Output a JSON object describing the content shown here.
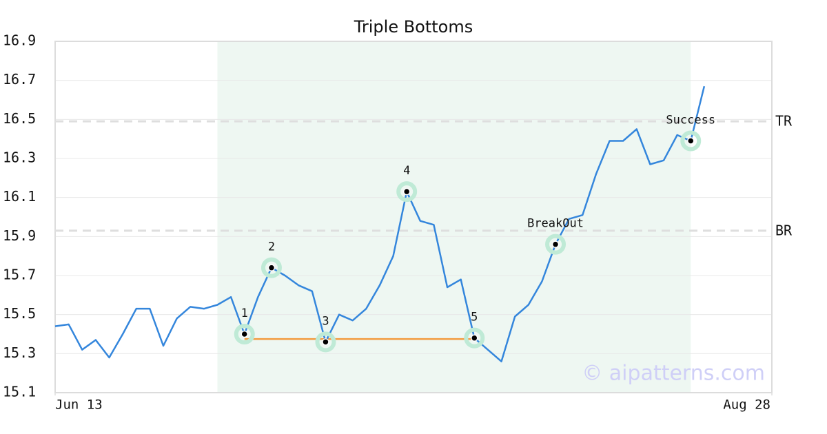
{
  "chart_data": {
    "type": "line",
    "title": "Triple Bottoms",
    "series": [
      {
        "color": "#3486dc",
        "values": [
          15.44,
          15.45,
          15.32,
          15.37,
          15.28,
          15.4,
          15.53,
          15.53,
          15.34,
          15.48,
          15.54,
          15.53,
          15.55,
          15.59,
          15.4,
          15.59,
          15.74,
          15.7,
          15.65,
          15.62,
          15.36,
          15.5,
          15.47,
          15.53,
          15.65,
          15.8,
          16.13,
          15.98,
          15.96,
          15.64,
          15.68,
          15.38,
          15.32,
          15.26,
          15.49,
          15.55,
          15.67,
          15.86,
          15.99,
          16.01,
          16.22,
          16.39,
          16.39,
          16.45,
          16.27,
          16.29,
          16.42,
          16.39,
          16.67
        ]
      }
    ],
    "xlim": [
      0,
      53
    ],
    "xticks": [
      {
        "value": 0,
        "label": "Jun 13"
      },
      {
        "value": 53,
        "label": "Aug 28"
      }
    ],
    "ylim": [
      15.1,
      16.9
    ],
    "yticks": [
      15.1,
      15.3,
      15.5,
      15.7,
      15.9,
      16.1,
      16.3,
      16.5,
      16.7,
      16.9
    ],
    "grid": true,
    "shade": {
      "x": [
        12,
        47
      ],
      "color": "#eef7f2"
    },
    "support": {
      "x": [
        14,
        31
      ],
      "y": 15.375,
      "color": "#f39a3e"
    },
    "hlines": [
      {
        "label": "TR",
        "value": 16.49
      },
      {
        "label": "BR",
        "value": 15.93
      }
    ],
    "markers": [
      {
        "label": "1",
        "x": 14,
        "y": 15.4
      },
      {
        "label": "2",
        "x": 16,
        "y": 15.74
      },
      {
        "label": "3",
        "x": 20,
        "y": 15.36
      },
      {
        "label": "4",
        "x": 26,
        "y": 16.13
      },
      {
        "label": "5",
        "x": 31,
        "y": 15.38
      },
      {
        "label": "BreakOut",
        "x": 37,
        "y": 15.86
      },
      {
        "label": "Success",
        "x": 47,
        "y": 16.39
      }
    ],
    "watermark": "© aipatterns.com"
  }
}
